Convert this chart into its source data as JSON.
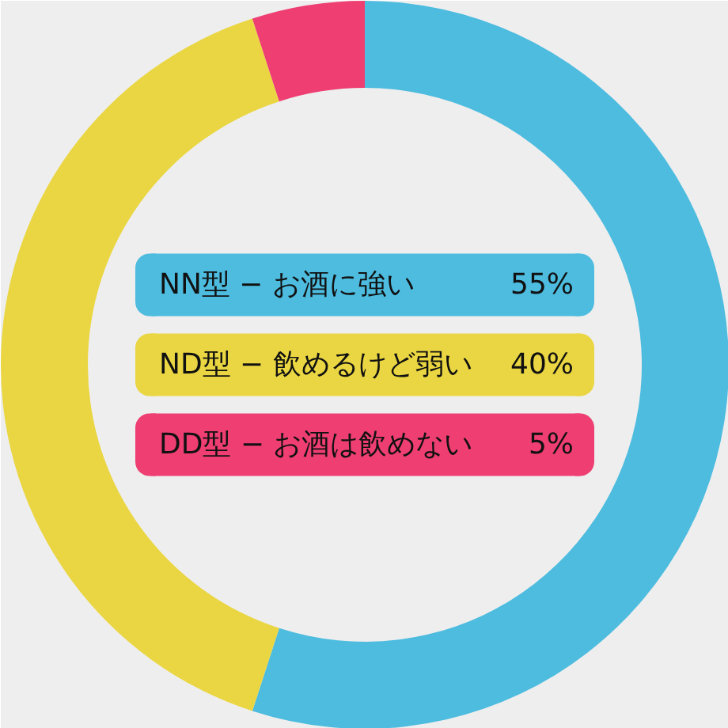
{
  "chart_data": {
    "type": "donut",
    "categories": [
      "NN型 − お酒に強い",
      "ND型 − 飲めるけど弱い",
      "DD型 − お酒は飲めない"
    ],
    "values": [
      55,
      40,
      5
    ],
    "colors": [
      "#4dbcdf",
      "#ead642",
      "#ee3e72"
    ],
    "value_labels": [
      "55%",
      "40%",
      "5%"
    ],
    "legend": "center"
  }
}
